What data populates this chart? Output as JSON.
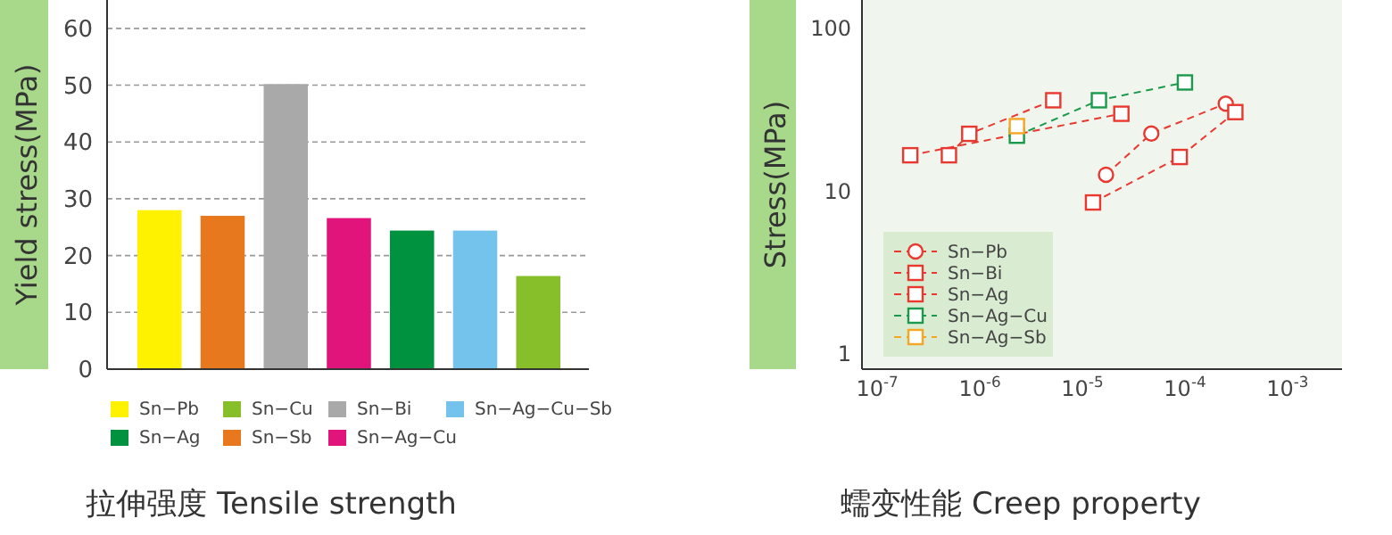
{
  "chart_data": [
    {
      "type": "bar",
      "title": "拉伸强度 Tensile strength",
      "ylabel": "Yield stress(MPa)",
      "categories": [
        null,
        null,
        null,
        null,
        null,
        null,
        null
      ],
      "series": [
        {
          "name": "Sn−Pb",
          "color": "#fff200",
          "values": [
            28,
            null,
            null,
            null,
            null,
            null,
            null
          ]
        },
        {
          "name": "Sn−Cu",
          "color": "#86bf29",
          "values": [
            null,
            null,
            null,
            null,
            null,
            null,
            16.4
          ]
        },
        {
          "name": "Sn−Bi",
          "color": "#a9a9a9",
          "values": [
            null,
            null,
            50.2,
            null,
            null,
            null,
            null
          ]
        },
        {
          "name": "Sn−Ag−Cu−Sb",
          "color": "#74c3ec",
          "values": [
            null,
            null,
            null,
            null,
            null,
            24.4,
            null
          ]
        },
        {
          "name": "Sn−Ag",
          "color": "#00923f",
          "values": [
            null,
            null,
            null,
            null,
            24.4,
            null,
            null
          ]
        },
        {
          "name": "Sn−Sb",
          "color": "#e8781e",
          "values": [
            null,
            27,
            null,
            null,
            null,
            null,
            null
          ]
        },
        {
          "name": "Sn−Ag−Cu",
          "color": "#e0147a",
          "values": [
            null,
            null,
            null,
            26.6,
            null,
            null,
            null
          ]
        }
      ],
      "ylim": [
        0,
        65
      ],
      "yticks": [
        0,
        10,
        20,
        30,
        40,
        50,
        60
      ],
      "grid": "y",
      "legend": "bottom"
    },
    {
      "type": "line",
      "title": "蠕变性能 Creep property",
      "ylabel": "Stress(MPa)",
      "log": "xy",
      "line_style": "dashed",
      "legend": "bottom left",
      "xlim": [
        7.1e-08,
        0.0034
      ],
      "ylim": [
        0.8,
        150
      ],
      "xticks": [
        {
          "value": 1e-07,
          "label": "10$^{-7}$"
        },
        {
          "value": 1e-06,
          "label": "10$^{-6}$"
        },
        {
          "value": 1e-05,
          "label": "10$^{-5}$"
        },
        {
          "value": 0.0001,
          "label": "10$^{-4}$"
        },
        {
          "value": 0.001,
          "label": "10$^{-3}$"
        }
      ],
      "yticks": [
        1,
        10,
        100
      ],
      "series": [
        {
          "name": "Sn−Pb",
          "color": "#e8382f",
          "marker": "circle",
          "x": [
            1.7e-05,
            4.7e-05,
            0.00025
          ],
          "values": [
            12.6,
            22.6,
            34.5
          ]
        },
        {
          "name": "Sn−Bi",
          "color": "#e8382f",
          "marker": "square",
          "x": [
            5e-07,
            7.9e-07,
            5.2e-06,
            1e-05,
            1.27e-05,
            8.9e-05,
            0.00031
          ],
          "values": [
            16.6,
            22.5,
            36.2,
            null,
            8.5,
            16.2,
            30.6
          ]
        },
        {
          "name": "Sn−Ag",
          "color": "#e8382f",
          "marker": "square",
          "x": [
            2.1e-07,
            2.4e-05
          ],
          "values": [
            16.6,
            29.9
          ]
        },
        {
          "name": "Sn−Ag−Cu",
          "color": "#1a9a4a",
          "marker": "square",
          "x": [
            2.3e-06,
            1.45e-05,
            0.0001
          ],
          "values": [
            21.9,
            36.2,
            46.6
          ]
        },
        {
          "name": "Sn−Ag−Sb",
          "color": "#f5a623",
          "marker": "square",
          "x": [
            2.3e-06
          ],
          "values": [
            25.1
          ]
        }
      ]
    }
  ]
}
